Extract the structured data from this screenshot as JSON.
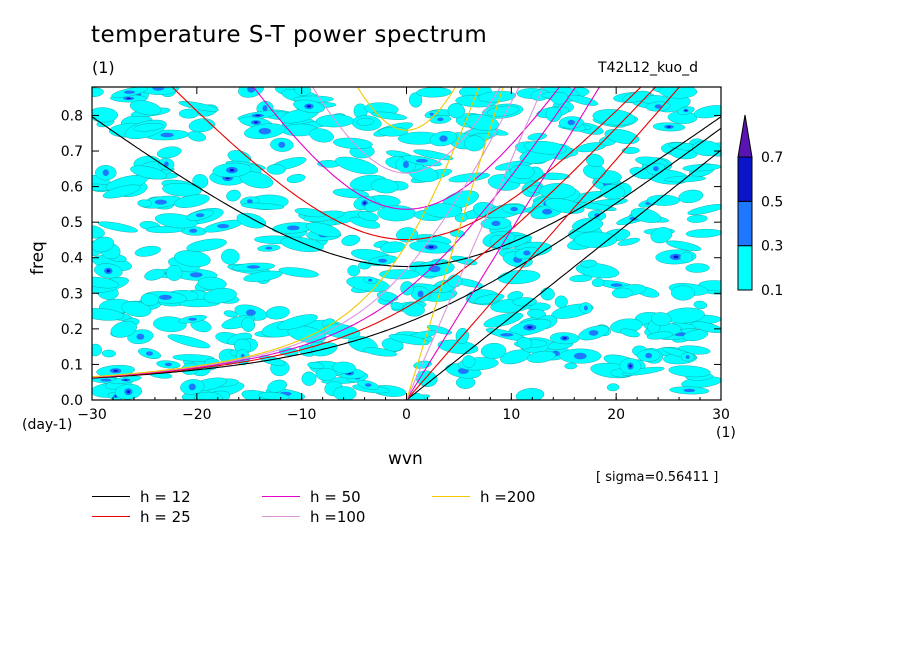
{
  "chart_data": {
    "type": "contour",
    "title": "temperature S-T power spectrum",
    "subtitle_left": "(1)",
    "subtitle_right": "T42L12_kuo_d",
    "xlabel": "wvn",
    "ylabel": "freq",
    "x_unit": "(1)",
    "y_unit": "(day-1)",
    "xlim": [
      -30,
      30
    ],
    "ylim": [
      0,
      0.88
    ],
    "x_ticks": [
      "-30",
      "-20",
      "-10",
      "0",
      "10",
      "20",
      "30"
    ],
    "y_ticks": [
      "0.0",
      "0.1",
      "0.2",
      "0.3",
      "0.4",
      "0.5",
      "0.6",
      "0.7",
      "0.8"
    ],
    "note": "[ sigma=0.56411 ]",
    "colorbar": {
      "levels": [
        "0.1",
        "0.3",
        "0.5",
        "0.7"
      ],
      "colors": [
        "#00ffff",
        "#1e78ff",
        "#0a14c8",
        "#5a14b4"
      ]
    },
    "dispersion_curves": [
      {
        "label": "h = 12",
        "h": 12,
        "color": "#000000"
      },
      {
        "label": "h = 25",
        "h": 25,
        "color": "#e60000"
      },
      {
        "label": "h = 50",
        "h": 50,
        "color": "#e600c8"
      },
      {
        "label": "h =100",
        "h": 100,
        "color": "#dc96dc"
      },
      {
        "label": "h =200",
        "h": 200,
        "color": "#f0c800"
      }
    ]
  }
}
